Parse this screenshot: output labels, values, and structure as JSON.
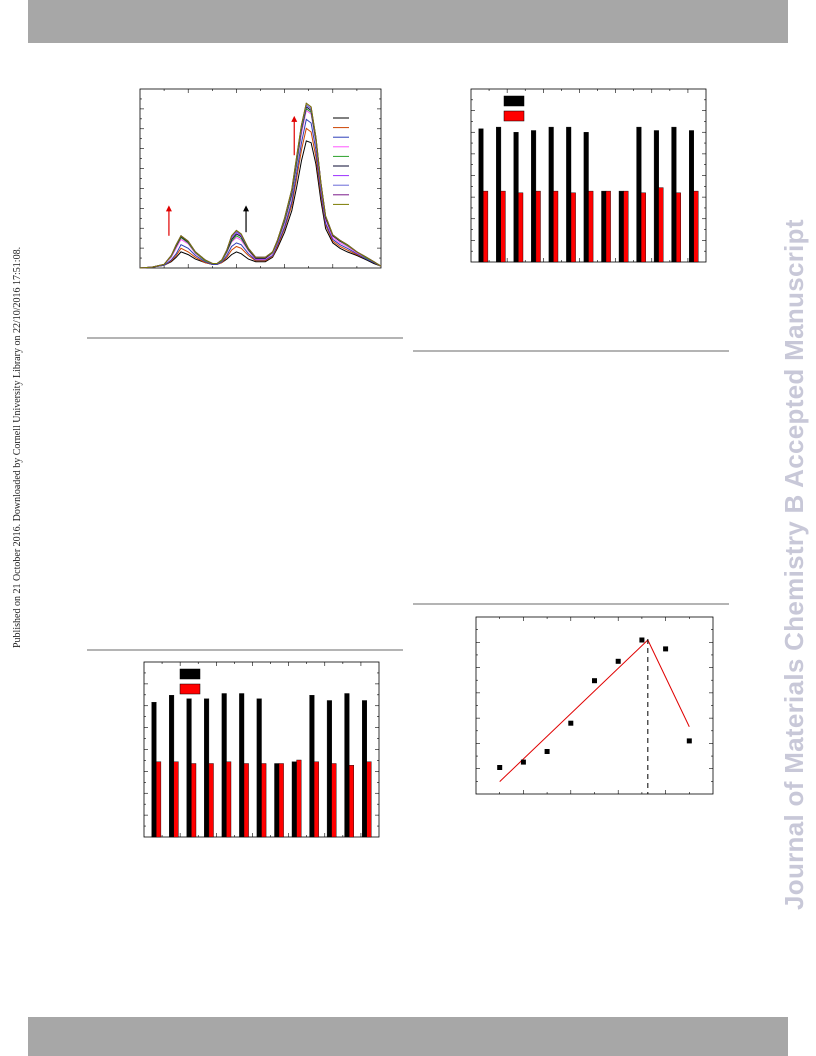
{
  "page": {
    "side_note": "Published on 21 October 2016. Downloaded by Cornell University Library on 22/10/2016 17:51:08.",
    "watermark": "Journal of Materials Chemistry B Accepted Manuscript"
  },
  "colors": {
    "band": "#a7a7a7",
    "rule": "#b4b4b4",
    "watermark": "#c8c8d8",
    "black_series": "#000000",
    "red_series": "#ff0000",
    "fit_line": "#e00000"
  },
  "chart_data": [
    {
      "id": "spectra",
      "type": "line",
      "title": "",
      "xlabel": "",
      "ylabel": "",
      "xlim": [
        0,
        100
      ],
      "ylim": [
        0,
        100
      ],
      "x": [
        0,
        5,
        10,
        13,
        15,
        17,
        20,
        23,
        27,
        30,
        32,
        34,
        36,
        38,
        40,
        42,
        45,
        48,
        52,
        55,
        57,
        60,
        63,
        65,
        67,
        69,
        71,
        73,
        75,
        77,
        80,
        83,
        86,
        90,
        94,
        97,
        100
      ],
      "series": [
        {
          "color": "#000000",
          "values": [
            0,
            0.5,
            1.5,
            3.5,
            6,
            9,
            7.5,
            5,
            3,
            2,
            2,
            3,
            5,
            7.5,
            9,
            8,
            5,
            3.5,
            3.5,
            6,
            11,
            20,
            32,
            45,
            60,
            71,
            70,
            58,
            38,
            22,
            14,
            11,
            9,
            7,
            4.5,
            2.5,
            1
          ]
        },
        {
          "color": "#cc4400",
          "values": [
            0,
            0.5,
            1.5,
            4,
            7,
            11,
            9,
            6,
            3,
            2,
            2,
            3,
            6,
            10,
            12,
            11,
            7,
            4,
            4,
            6.5,
            12,
            22,
            35,
            50,
            66,
            78,
            76,
            62,
            41,
            24,
            15,
            12,
            10,
            7.5,
            5,
            3,
            1
          ]
        },
        {
          "color": "#2d3eb8",
          "values": [
            0,
            0.5,
            1.5,
            4.5,
            8,
            13,
            11,
            7,
            3.5,
            2,
            2,
            3.5,
            7,
            12,
            14,
            13,
            8,
            4.5,
            4.5,
            7,
            13,
            23,
            37,
            53,
            70,
            83,
            81,
            66,
            43,
            25,
            16,
            13,
            11,
            8,
            5,
            3,
            1
          ]
        },
        {
          "color": "#ff55ff",
          "values": [
            0,
            0.5,
            2,
            6,
            11,
            16,
            13.5,
            8,
            4,
            2.5,
            2.5,
            4,
            8.5,
            14.5,
            17,
            15.5,
            9.5,
            5,
            5,
            8,
            14,
            25,
            40,
            57,
            75,
            88,
            86,
            70,
            46,
            27,
            17,
            14,
            12,
            8.5,
            5.5,
            3.5,
            1
          ]
        },
        {
          "color": "#2aa02a",
          "values": [
            0,
            0.5,
            2,
            6.5,
            12,
            17,
            14,
            8.5,
            4,
            2.5,
            2.5,
            4,
            9,
            15,
            18,
            16.5,
            10,
            5.5,
            5.5,
            8.5,
            14.5,
            26,
            41,
            58,
            77,
            89,
            87,
            71,
            47,
            28,
            18,
            15,
            12.5,
            9,
            5.5,
            3.5,
            1
          ]
        },
        {
          "color": "#0a0a30",
          "values": [
            0,
            0.5,
            2,
            7,
            12.5,
            17.5,
            14.5,
            9,
            4.5,
            2.5,
            2.5,
            4.5,
            9.5,
            16,
            19,
            17.5,
            10.5,
            5.5,
            5.5,
            9,
            15,
            27,
            42,
            60,
            78,
            90,
            88,
            72,
            48,
            28,
            18,
            15,
            13,
            9,
            6,
            3.5,
            1
          ]
        },
        {
          "color": "#9b30ff",
          "values": [
            0,
            0.5,
            2,
            7,
            13,
            18,
            15,
            9,
            4.5,
            2.5,
            2.5,
            4.5,
            10,
            17,
            20,
            18,
            11,
            6,
            6,
            9,
            15.5,
            27.5,
            43,
            61,
            79,
            91,
            89,
            73,
            48,
            29,
            18.5,
            15.5,
            13,
            9,
            6,
            3.5,
            1
          ]
        },
        {
          "color": "#6a6ad8",
          "values": [
            0,
            0.5,
            2,
            7,
            13,
            18,
            15,
            9,
            4.5,
            2.5,
            2.5,
            4.5,
            10,
            17.5,
            20.5,
            18.5,
            11,
            6,
            6,
            9,
            15.5,
            27.5,
            43,
            61,
            79,
            91,
            89,
            73,
            48,
            29,
            18.5,
            15.5,
            13,
            9,
            6,
            3.5,
            1
          ]
        },
        {
          "color": "#7a1a8a",
          "values": [
            0,
            0.5,
            2,
            7,
            13,
            18,
            15,
            9,
            4.5,
            2.5,
            2.5,
            4.5,
            10,
            18,
            21,
            19,
            11,
            6,
            6,
            9,
            15.5,
            28,
            44,
            62,
            80,
            92,
            90,
            73,
            48,
            29,
            18.5,
            15.5,
            13,
            9,
            6,
            3.5,
            1
          ]
        },
        {
          "color": "#7a7a00",
          "values": [
            0,
            0.5,
            2,
            7,
            13,
            18,
            15,
            9,
            4.5,
            2.5,
            2.5,
            4.5,
            10,
            18,
            21,
            19,
            11,
            6,
            6,
            9,
            15.5,
            28,
            44,
            62,
            80,
            92,
            90,
            73,
            48,
            29,
            18.5,
            15.5,
            13,
            9,
            6,
            3.5,
            1
          ]
        }
      ],
      "arrows": [
        {
          "x": 12,
          "from": 18,
          "to": 35,
          "color": "#e00000"
        },
        {
          "x": 44,
          "from": 20,
          "to": 35,
          "color": "#000000"
        },
        {
          "x": 64,
          "from": 63,
          "to": 85,
          "color": "#e00000"
        }
      ],
      "legend": "top-right"
    },
    {
      "id": "bars-top-right",
      "type": "bar",
      "title": "",
      "xlabel": "",
      "ylabel": "",
      "ylim": [
        0,
        100
      ],
      "categories": [
        "",
        "",
        "",
        "",
        "",
        "",
        "",
        "",
        "",
        "",
        "",
        "",
        ""
      ],
      "series": [
        {
          "color": "#000000",
          "values": [
            77,
            78,
            75,
            76,
            78,
            78,
            75,
            41,
            41,
            78,
            76,
            78,
            76
          ]
        },
        {
          "color": "#ff0000",
          "values": [
            41,
            41,
            40,
            41,
            41,
            40,
            41,
            41,
            41,
            40,
            43,
            40,
            41
          ]
        }
      ],
      "legend": "top-left"
    },
    {
      "id": "bars-bottom-left",
      "type": "bar",
      "title": "",
      "xlabel": "",
      "ylabel": "",
      "ylim": [
        0,
        100
      ],
      "categories": [
        "",
        "",
        "",
        "",
        "",
        "",
        "",
        "",
        "",
        "",
        "",
        "",
        ""
      ],
      "series": [
        {
          "color": "#000000",
          "values": [
            77,
            81,
            79,
            79,
            82,
            82,
            79,
            42,
            43,
            81,
            78,
            82,
            78
          ]
        },
        {
          "color": "#ff0000",
          "values": [
            43,
            43,
            42,
            42,
            43,
            42,
            42,
            42,
            44,
            43,
            42,
            41,
            43
          ]
        }
      ],
      "legend": "top-left"
    },
    {
      "id": "scatter-bottom-right",
      "type": "scatter",
      "title": "",
      "xlabel": "",
      "ylabel": "",
      "xlim": [
        0,
        10
      ],
      "ylim": [
        0,
        100
      ],
      "x": [
        1,
        2,
        3,
        4,
        5,
        6,
        7,
        8,
        9
      ],
      "values": [
        15,
        18,
        24,
        40,
        64,
        75,
        87,
        82,
        30
      ],
      "fit_lines": [
        {
          "x": [
            1,
            7.25
          ],
          "values": [
            7,
            87
          ]
        },
        {
          "x": [
            7.25,
            9
          ],
          "values": [
            87,
            38
          ]
        }
      ],
      "vline_x": 7.25
    }
  ]
}
